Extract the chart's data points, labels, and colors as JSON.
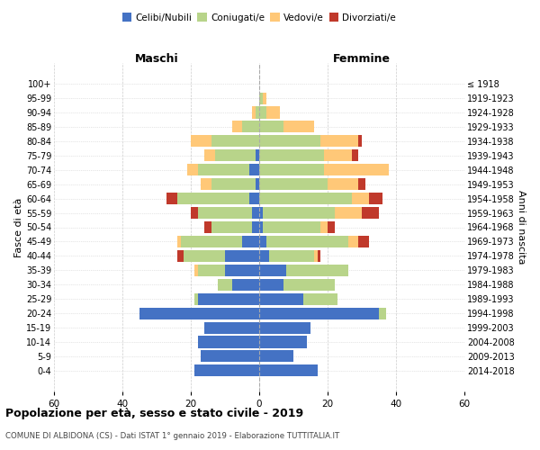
{
  "age_groups": [
    "0-4",
    "5-9",
    "10-14",
    "15-19",
    "20-24",
    "25-29",
    "30-34",
    "35-39",
    "40-44",
    "45-49",
    "50-54",
    "55-59",
    "60-64",
    "65-69",
    "70-74",
    "75-79",
    "80-84",
    "85-89",
    "90-94",
    "95-99",
    "100+"
  ],
  "birth_years": [
    "2014-2018",
    "2009-2013",
    "2004-2008",
    "1999-2003",
    "1994-1998",
    "1989-1993",
    "1984-1988",
    "1979-1983",
    "1974-1978",
    "1969-1973",
    "1964-1968",
    "1959-1963",
    "1954-1958",
    "1949-1953",
    "1944-1948",
    "1939-1943",
    "1934-1938",
    "1929-1933",
    "1924-1928",
    "1919-1923",
    "≤ 1918"
  ],
  "colors": {
    "celibi": "#4472c4",
    "coniugati": "#b8d48a",
    "vedovi": "#ffc878",
    "divorziati": "#c0392b"
  },
  "male": {
    "celibi": [
      19,
      17,
      18,
      16,
      35,
      18,
      8,
      10,
      10,
      5,
      2,
      2,
      3,
      1,
      3,
      1,
      0,
      0,
      0,
      0,
      0
    ],
    "coniugati": [
      0,
      0,
      0,
      0,
      0,
      1,
      4,
      8,
      12,
      18,
      12,
      16,
      21,
      13,
      15,
      12,
      14,
      5,
      1,
      0,
      0
    ],
    "vedovi": [
      0,
      0,
      0,
      0,
      0,
      0,
      0,
      1,
      0,
      1,
      0,
      0,
      0,
      3,
      3,
      3,
      6,
      3,
      1,
      0,
      0
    ],
    "divorziati": [
      0,
      0,
      0,
      0,
      0,
      0,
      0,
      0,
      2,
      0,
      2,
      2,
      3,
      0,
      0,
      0,
      0,
      0,
      0,
      0,
      0
    ]
  },
  "female": {
    "celibi": [
      17,
      10,
      14,
      15,
      35,
      13,
      7,
      8,
      3,
      2,
      1,
      1,
      0,
      0,
      0,
      0,
      0,
      0,
      0,
      0,
      0
    ],
    "coniugati": [
      0,
      0,
      0,
      0,
      2,
      10,
      15,
      18,
      13,
      24,
      17,
      21,
      27,
      20,
      19,
      19,
      18,
      7,
      2,
      1,
      0
    ],
    "vedovi": [
      0,
      0,
      0,
      0,
      0,
      0,
      0,
      0,
      1,
      3,
      2,
      8,
      5,
      9,
      19,
      8,
      11,
      9,
      4,
      1,
      0
    ],
    "divorziati": [
      0,
      0,
      0,
      0,
      0,
      0,
      0,
      0,
      1,
      3,
      2,
      5,
      4,
      2,
      0,
      2,
      1,
      0,
      0,
      0,
      0
    ]
  },
  "xlim": 60,
  "title": "Popolazione per età, sesso e stato civile - 2019",
  "subtitle": "COMUNE DI ALBIDONA (CS) - Dati ISTAT 1° gennaio 2019 - Elaborazione TUTTITALIA.IT",
  "ylabel_left": "Fasce di età",
  "ylabel_right": "Anni di nascita",
  "xlabel_maschi": "Maschi",
  "xlabel_femmine": "Femmine",
  "legend_labels": [
    "Celibi/Nubili",
    "Coniugati/e",
    "Vedovi/e",
    "Divorziati/e"
  ],
  "background_color": "#ffffff",
  "grid_color": "#cccccc"
}
